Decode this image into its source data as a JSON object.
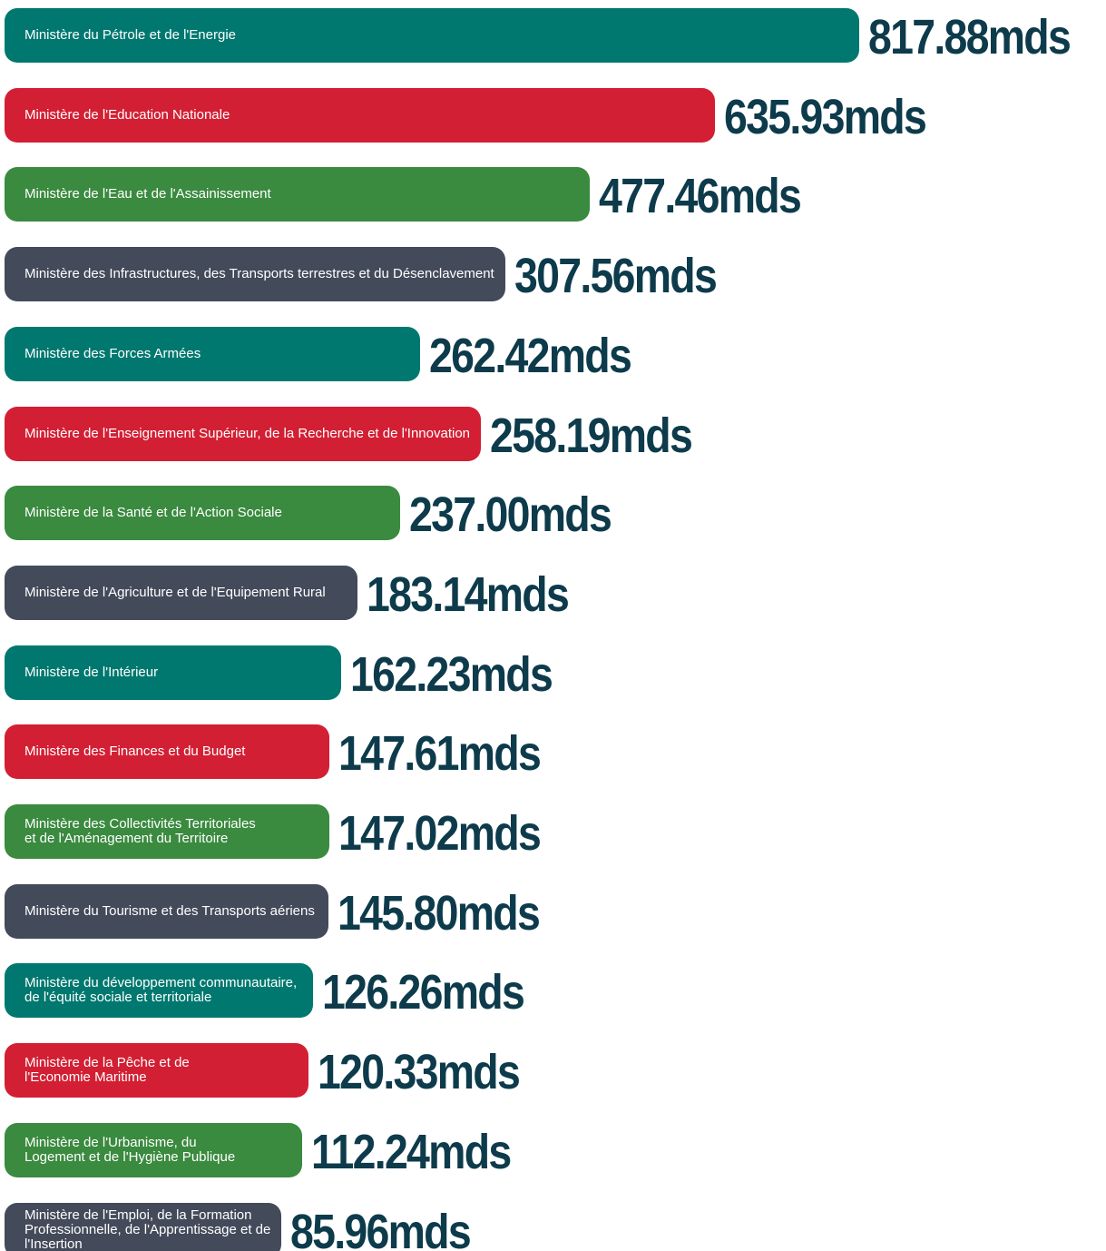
{
  "chart_data": {
    "type": "bar",
    "categories": [
      "Ministère du Pétrole et de l'Energie",
      "Ministère de l'Education Nationale",
      "Ministère de l'Eau et de l'Assainissement",
      "Ministère des Infrastructures, des Transports terrestres et du Désenclavement",
      "Ministère des Forces Armées",
      "Ministère de l'Enseignement Supérieur, de la Recherche et de l'Innovation",
      "Ministère de la Santé et de l'Action Sociale",
      "Ministère de l'Agriculture et de l'Equipement Rural",
      "Ministère de l'Intérieur",
      "Ministère des Finances et du Budget",
      "Ministère des Collectivités Territoriales\net de l'Aménagement du Territoire",
      "Ministère du Tourisme et des Transports aériens",
      "Ministère du développement communautaire,\nde l'équité sociale et territoriale",
      "Ministère de la Pêche et de\n l'Economie Maritime",
      "Ministère de l'Urbanisme, du\nLogement et de l'Hygiène Publique",
      "Ministère de l'Emploi, de la Formation\nProfessionnelle, de l'Apprentissage et de\nl'Insertion"
    ],
    "values": [
      817.88,
      635.93,
      477.46,
      307.56,
      262.42,
      258.19,
      237.0,
      183.14,
      162.23,
      147.61,
      147.02,
      145.8,
      126.26,
      120.33,
      112.24,
      85.96
    ],
    "value_labels": [
      "817.88mds",
      "635.93mds",
      "477.46mds",
      "307.56mds",
      "262.42mds",
      "258.19mds",
      "237.00mds",
      "183.14mds",
      "162.23mds",
      "147.61mds",
      "147.02mds",
      "145.80mds",
      "126.26mds",
      "120.33mds",
      "112.24mds",
      "85.96mds"
    ],
    "colors": [
      "#00786f",
      "#d31f33",
      "#3a8a3f",
      "#434a5a",
      "#00786f",
      "#d31f33",
      "#3a8a3f",
      "#434a5a",
      "#00786f",
      "#d31f33",
      "#3a8a3f",
      "#434a5a",
      "#00786f",
      "#d31f33",
      "#3a8a3f",
      "#434a5a"
    ]
  }
}
